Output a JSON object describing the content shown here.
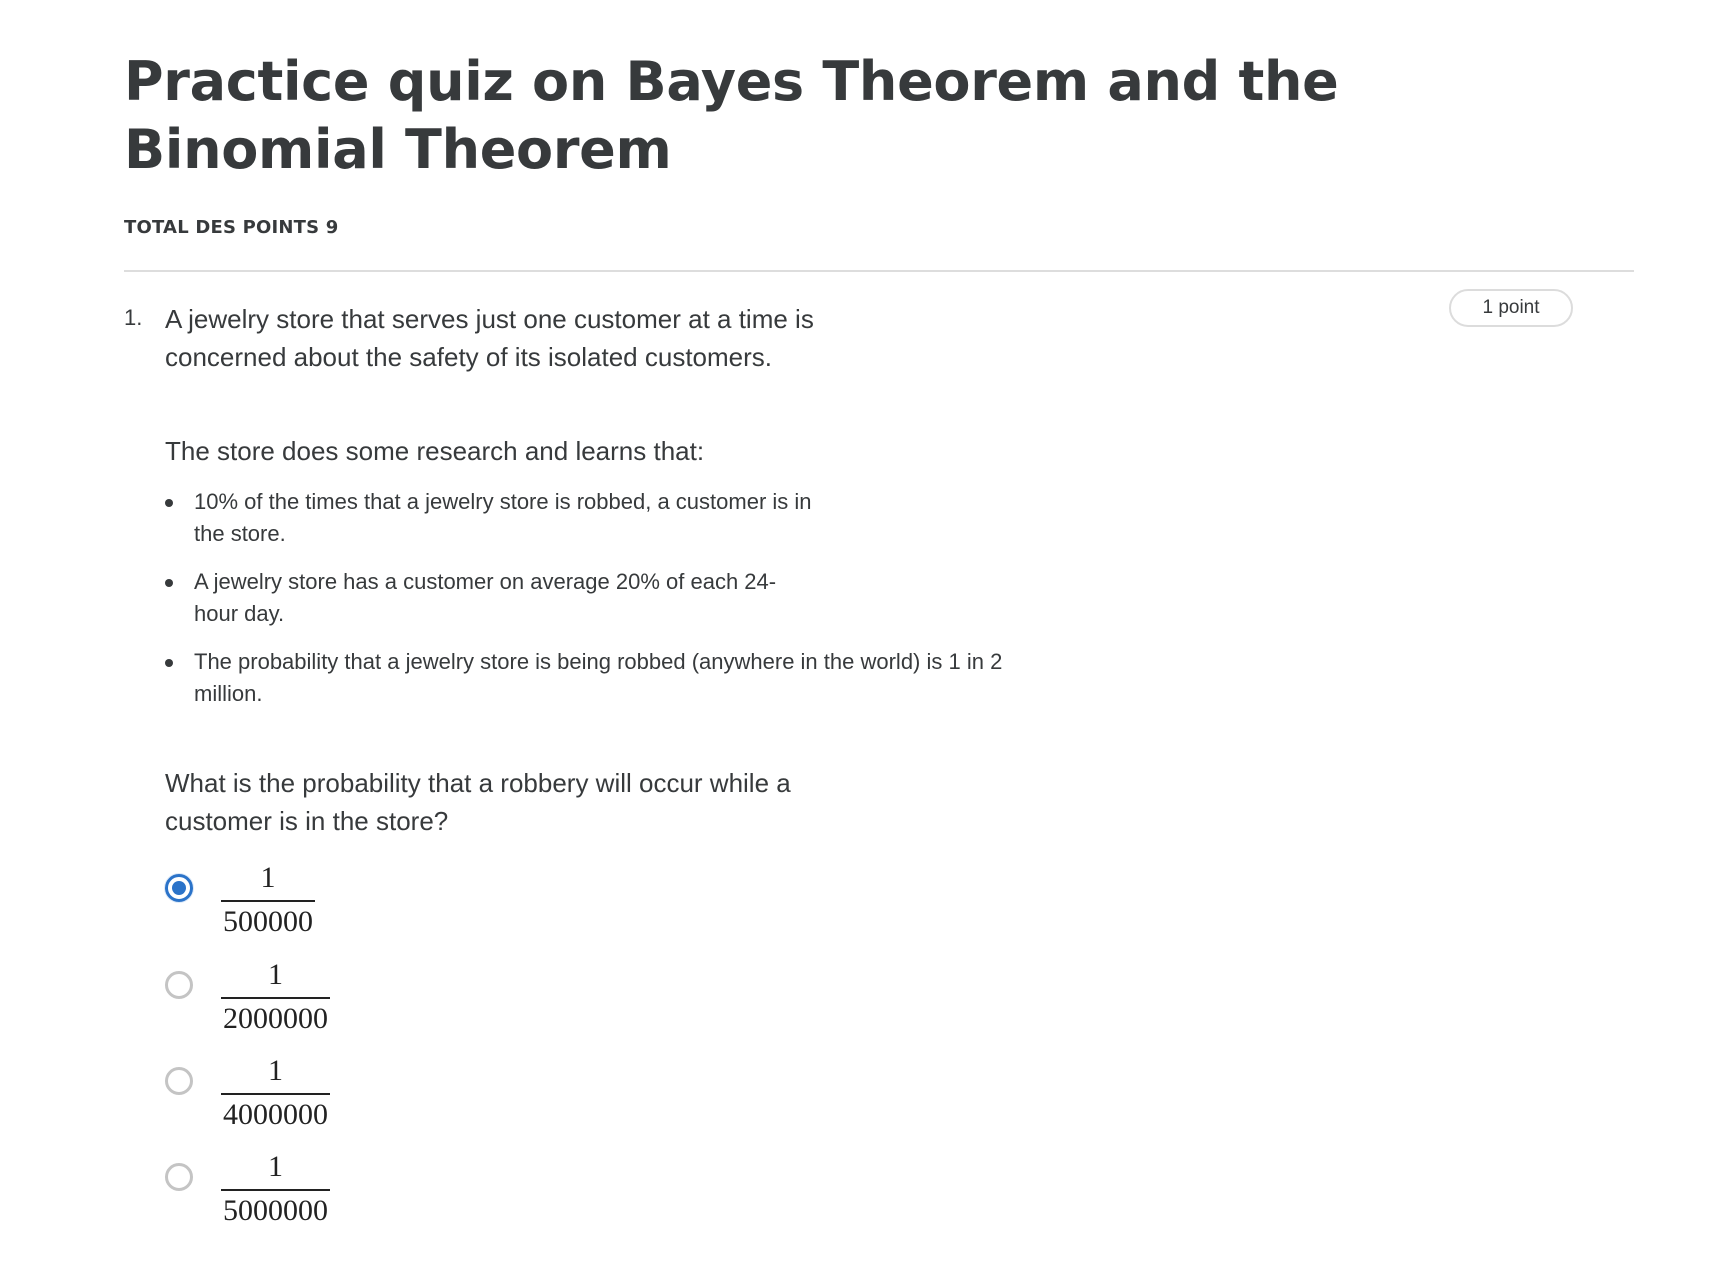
{
  "quiz": {
    "title": "Practice quiz on Bayes Theorem and the Binomial Theorem",
    "total_points": "TOTAL DES POINTS 9"
  },
  "question1": {
    "number": "1.",
    "points_badge": "1 point",
    "intro": "A jewelry store that serves just one customer at a time is concerned about the safety of its isolated customers.",
    "research": "The store does some research and learns that:",
    "facts": [
      "10% of the times that a jewelry store is robbed, a customer is in the store.",
      "A jewelry store has a customer on average 20% of each 24-hour day.",
      "The probability that a jewelry store is being robbed (anywhere in the world) is 1 in 2 million."
    ],
    "ask": "What is the probability that a robbery will occur while a customer is in the store?",
    "selected_index": 0,
    "options": [
      {
        "numerator": "1",
        "denominator": "500000"
      },
      {
        "numerator": "1",
        "denominator": "2000000"
      },
      {
        "numerator": "1",
        "denominator": "4000000"
      },
      {
        "numerator": "1",
        "denominator": "5000000"
      }
    ]
  },
  "colors": {
    "text": "#373a3c",
    "divider": "#dddddd",
    "radio_selected": "#2b73c9",
    "radio_unselected": "#c4c4c4"
  }
}
